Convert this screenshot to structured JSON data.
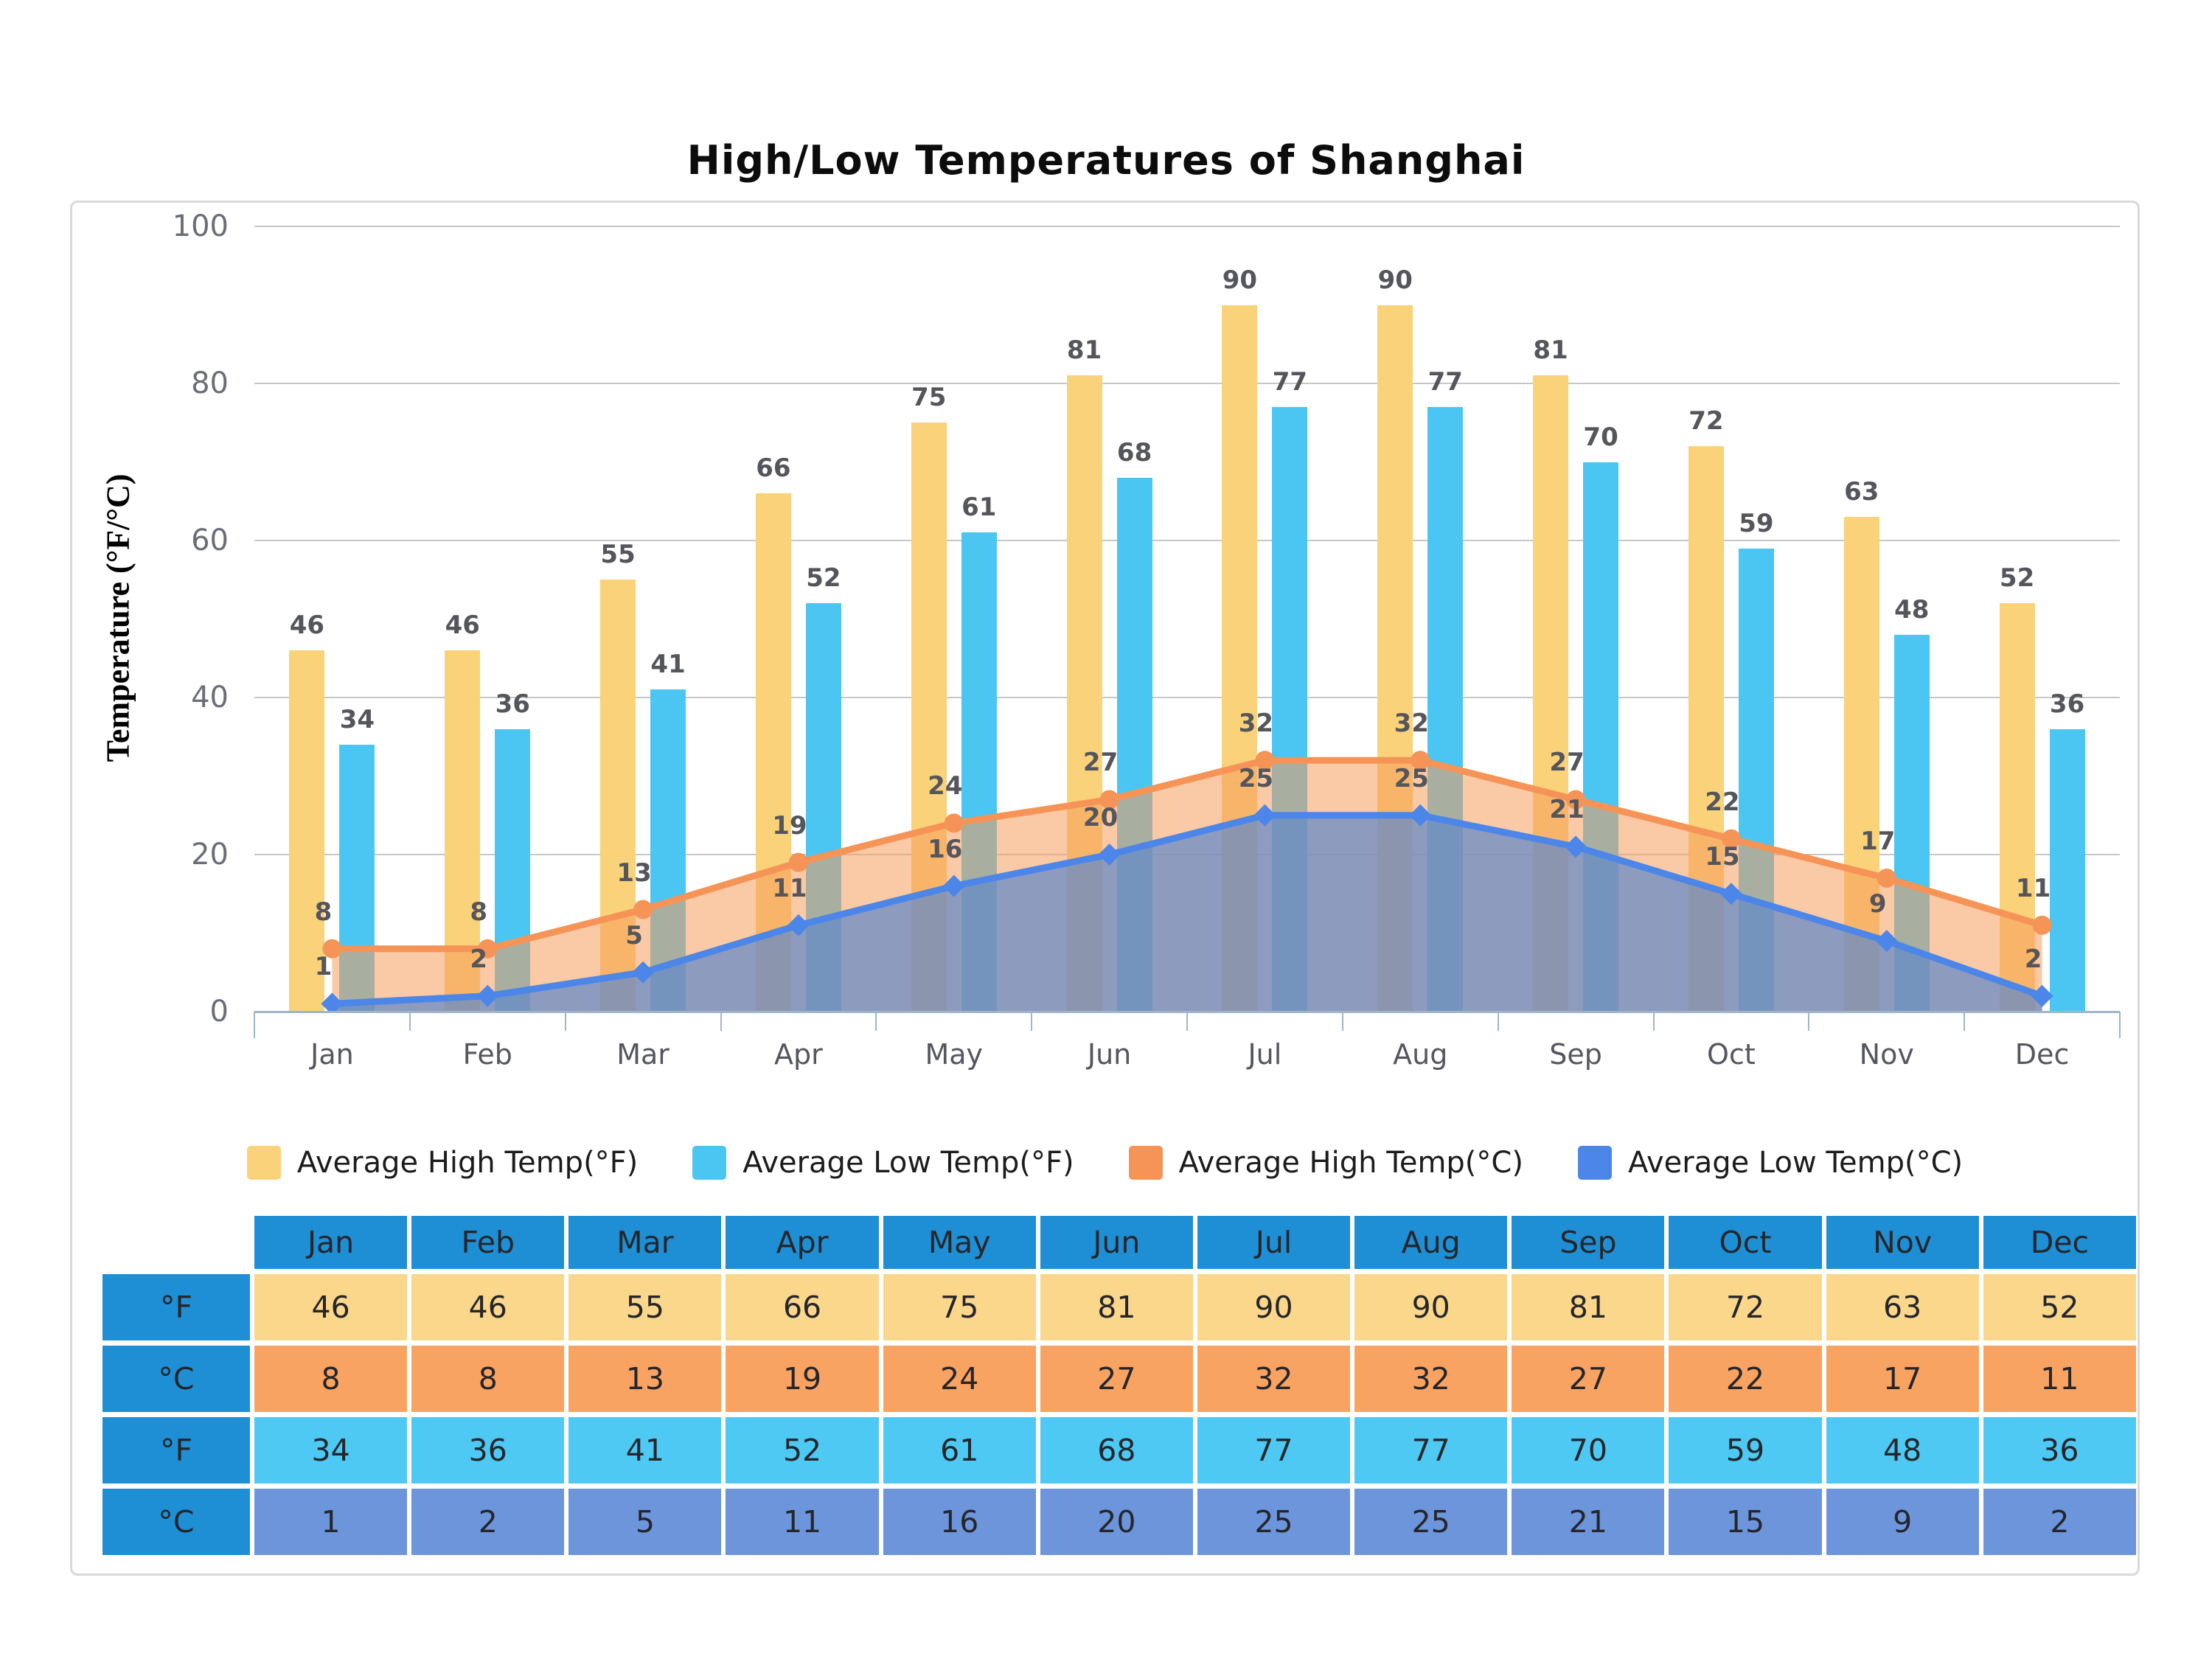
{
  "chart_data": {
    "type": "combo-bar-area",
    "title": "High/Low Temperatures of Shanghai",
    "ylabel": "Temperature (°F/°C)",
    "categories": [
      "Jan",
      "Feb",
      "Mar",
      "Apr",
      "May",
      "Jun",
      "Jul",
      "Aug",
      "Sep",
      "Oct",
      "Nov",
      "Dec"
    ],
    "series": [
      {
        "name": "Average High Temp(°F)",
        "type": "bar",
        "color": "#FAD27A",
        "values": [
          46,
          46,
          55,
          66,
          75,
          81,
          90,
          90,
          81,
          72,
          63,
          52
        ]
      },
      {
        "name": "Average Low Temp(°F)",
        "type": "bar",
        "color": "#4BC6F2",
        "values": [
          34,
          36,
          41,
          52,
          61,
          68,
          77,
          77,
          70,
          59,
          48,
          36
        ]
      },
      {
        "name": "Average High Temp(°C)",
        "type": "area",
        "color": "#F59456",
        "fill": "rgba(246,157,92,0.55)",
        "marker": "circle",
        "values": [
          8,
          8,
          13,
          19,
          24,
          27,
          32,
          32,
          27,
          22,
          17,
          11
        ]
      },
      {
        "name": "Average Low Temp(°C)",
        "type": "area",
        "color": "#4C86E9",
        "fill": "rgba(97,137,200,0.72)",
        "marker": "diamond",
        "values": [
          1,
          2,
          5,
          11,
          16,
          20,
          25,
          25,
          21,
          15,
          9,
          2
        ]
      }
    ],
    "yticks": [
      0,
      20,
      40,
      60,
      80,
      100
    ],
    "ylim": [
      0,
      100
    ],
    "grid": "horizontal",
    "legend_position": "bottom"
  },
  "table": {
    "corner_label": "",
    "row_labels": [
      "°F",
      "°C",
      "°F",
      "°C"
    ],
    "row_series": [
      0,
      2,
      1,
      3
    ],
    "row_colors": [
      "#FBD78B",
      "#F9A362",
      "#4DC9F4",
      "#6D95DC"
    ],
    "header_color": "#1E8FD5"
  },
  "colors": {
    "grid": "#c7c7c7",
    "axis": "#9fb6c8",
    "panel_border": "#d9d9d9",
    "label_text": "#55565c",
    "tick_text": "#6b6e78"
  }
}
